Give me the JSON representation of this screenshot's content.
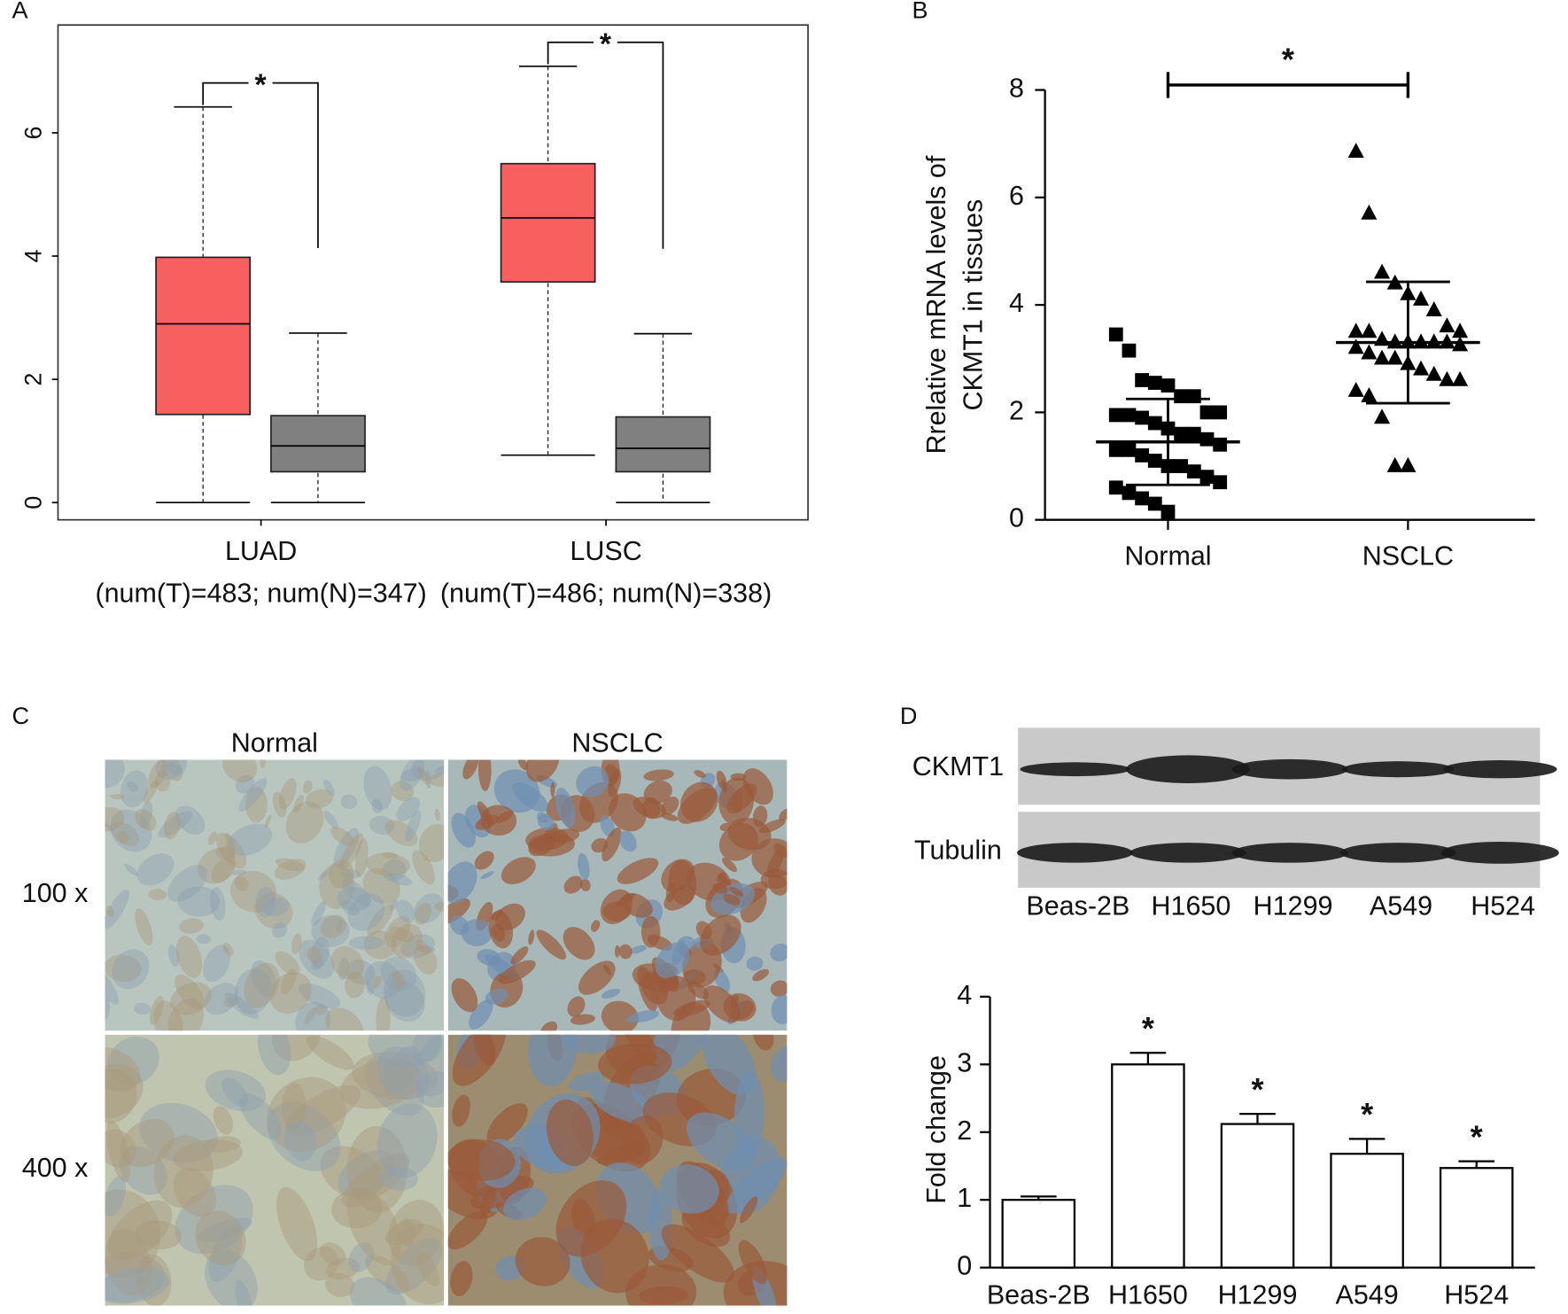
{
  "panel_labels": [
    "A",
    "B",
    "C",
    "D"
  ],
  "chart_data": [
    {
      "type": "box",
      "ylim": [
        -0.28,
        7.75
      ],
      "yticks": [
        0,
        2,
        4,
        6
      ],
      "categories": [
        "LUAD",
        "LUSC"
      ],
      "category_notes": [
        "(num(T)=483; num(N)=347)",
        "(num(T)=486; num(N)=338)"
      ],
      "series": [
        {
          "color": "#f8605f",
          "boxes": [
            {
              "min": 0,
              "q1": 1.43,
              "median": 2.9,
              "q3": 3.98,
              "max": 6.42
            },
            {
              "min": 0.77,
              "q1": 3.58,
              "median": 4.62,
              "q3": 5.5,
              "max": 7.08
            }
          ]
        },
        {
          "color": "#808080",
          "boxes": [
            {
              "min": 0,
              "q1": 0.5,
              "median": 0.92,
              "q3": 1.41,
              "max": 2.75
            },
            {
              "min": 0,
              "q1": 0.5,
              "median": 0.88,
              "q3": 1.39,
              "max": 2.74
            }
          ]
        }
      ],
      "significance": [
        "*",
        "*"
      ]
    },
    {
      "type": "scatter",
      "ylim": [
        0,
        8
      ],
      "yticks": [
        0,
        2,
        4,
        6,
        8
      ],
      "ylabel": [
        "Rrelative mRNA levels of",
        "CKMT1 in tissues"
      ],
      "categories": [
        "Normal",
        "NSCLC"
      ],
      "groups": [
        {
          "marker": "square",
          "mean": 1.45,
          "sd": 0.8,
          "values": [
            3.45,
            3.15,
            2.6,
            2.55,
            2.5,
            2.3,
            2.3,
            2.0,
            2.0,
            1.95,
            1.95,
            1.9,
            1.8,
            1.7,
            1.6,
            1.6,
            1.5,
            1.4,
            1.3,
            1.3,
            1.2,
            1.1,
            1.0,
            1.0,
            0.9,
            0.8,
            0.7,
            0.6,
            0.5,
            0.4,
            0.3,
            0.15
          ]
        },
        {
          "marker": "triangle",
          "mean": 3.3,
          "sd": 1.13,
          "values": [
            6.85,
            5.7,
            4.6,
            4.4,
            4.2,
            4.1,
            3.9,
            3.6,
            3.5,
            3.5,
            3.5,
            3.35,
            3.3,
            3.3,
            3.3,
            3.3,
            3.3,
            3.25,
            3.2,
            3.1,
            3.0,
            3.0,
            2.9,
            2.8,
            2.7,
            2.6,
            2.6,
            2.4,
            2.3,
            1.9,
            1.0,
            1.0
          ]
        }
      ],
      "significance": "*"
    },
    {
      "type": "bar",
      "ylim": [
        0,
        4
      ],
      "yticks": [
        0,
        1,
        2,
        3,
        4
      ],
      "ylabel": "Fold change",
      "categories": [
        "Beas-2B",
        "H1650",
        "H1299",
        "A549",
        "H524"
      ],
      "values": [
        1.0,
        3.0,
        2.12,
        1.68,
        1.47
      ],
      "errors": [
        0.05,
        0.17,
        0.15,
        0.22,
        0.1
      ],
      "stars": [
        null,
        "*",
        "*",
        "*",
        "*"
      ],
      "color": "#ffffff"
    }
  ],
  "figure_c": {
    "columns": [
      "Normal",
      "NSCLC"
    ],
    "rows": [
      "100 x",
      "400 x"
    ]
  },
  "blot": {
    "rows": [
      "CKMT1",
      "Tubulin"
    ]
  }
}
